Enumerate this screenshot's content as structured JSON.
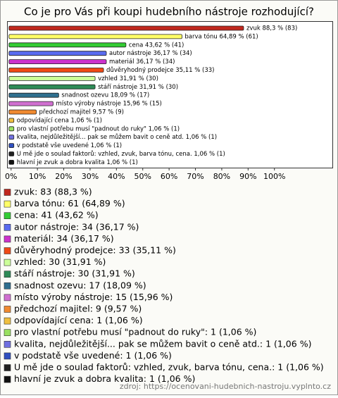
{
  "chart_data": {
    "type": "bar",
    "orientation": "horizontal",
    "title": "Co je pro Vás při koupi hudebního nástroje rozhodující?",
    "categories": [
      "zvuk",
      "barva tónu",
      "cena",
      "autor nástroje",
      "materiál",
      "důvěryhodný prodejce",
      "vzhled",
      "stáří nástroje",
      "snadnost ozevu",
      "místo výroby nástroje",
      "předchozí majitel",
      "odpovídající cena",
      "pro vlastní potřebu musí \"padnout do ruky\"",
      "kvalita, nejdůležitější... pak se můžem bavit o ceně atd.",
      "v podstatě vše uvedené",
      "U mě jde o soulad faktorů: vzhled, zvuk, barva tónu, cena.",
      "hlavní je zvuk a dobra kvalita"
    ],
    "values": [
      88.3,
      64.89,
      43.62,
      36.17,
      36.17,
      35.11,
      31.91,
      31.91,
      18.09,
      15.96,
      9.57,
      1.06,
      1.06,
      1.06,
      1.06,
      1.06,
      1.06
    ],
    "value_labels": [
      "zvuk 88,3 % (83)",
      "barva tónu 64,89 % (61)",
      "cena 43,62 % (41)",
      "autor nástroje 36,17 % (34)",
      "materiál 36,17 % (34)",
      "důvěryhodný prodejce 35,11 % (33)",
      "vzhled 31,91 % (30)",
      "stáří nástroje 31,91 % (30)",
      "snadnost ozevu 18,09 % (17)",
      "místo výroby nástroje 15,96 % (15)",
      "předchozí majitel 9,57 % (9)",
      "odpovídající cena 1,06 % (1)",
      "pro vlastní potřebu musí \"padnout do ruky\" 1,06 % (1)",
      "kvalita, nejdůležitější... pak se můžem bavit o ceně atd. 1,06 % (1)",
      "v podstatě vše uvedené 1,06 % (1)",
      "U mě jde o soulad faktorů: vzhled, zvuk, barva tónu, cena. 1,06 % (1)",
      "hlavní je zvuk a dobra kvalita 1,06 % (1)"
    ],
    "legend_labels": [
      "zvuk: 83 (88,3 %)",
      "barva tónu: 61 (64,89 %)",
      "cena: 41 (43,62 %)",
      "autor nástroje: 34 (36,17 %)",
      "materiál: 34 (36,17 %)",
      "důvěryhodný prodejce: 33 (35,11 %)",
      "vzhled: 30 (31,91 %)",
      "stáří nástroje: 30 (31,91 %)",
      "snadnost ozevu: 17 (18,09 %)",
      "místo výroby nástroje: 15 (15,96 %)",
      "předchozí majitel: 9 (9,57 %)",
      "odpovídající cena: 1 (1,06 %)",
      "pro vlastní potřebu musí \"padnout do ruky\": 1 (1,06 %)",
      "kvalita, nejdůležitější... pak se můžem bavit o ceně atd.: 1 (1,06 %)",
      "v podstatě vše uvedené: 1 (1,06 %)",
      "U mě jde o soulad faktorů: vzhled, zvuk, barva tónu, cena.: 1 (1,06 %)",
      "hlavní je zvuk a dobra kvalita: 1 (1,06 %)"
    ],
    "colors": [
      "#c0281e",
      "#ffff66",
      "#33cc33",
      "#5a6cf0",
      "#cc33cc",
      "#f04a16",
      "#ccff99",
      "#2e8b57",
      "#2f6f8f",
      "#d070d0",
      "#f08a30",
      "#f0c040",
      "#99e060",
      "#7070e0",
      "#3050c0",
      "#202020",
      "#101010"
    ],
    "xlim": [
      -1,
      122
    ],
    "xticks": [
      {
        "value": 0,
        "label": "0%"
      },
      {
        "value": 10,
        "label": "10%"
      },
      {
        "value": 20,
        "label": "20%"
      },
      {
        "value": 30,
        "label": "30%"
      },
      {
        "value": 40,
        "label": "40%"
      },
      {
        "value": 50,
        "label": "50%"
      },
      {
        "value": 60,
        "label": "60%"
      },
      {
        "value": 70,
        "label": "70%"
      },
      {
        "value": 80,
        "label": "80%"
      },
      {
        "value": 90,
        "label": "90%"
      },
      {
        "value": 100,
        "label": "100%"
      }
    ],
    "source": "zdroj: https://ocenovani-hudebnich-nastroju.vyplnto.cz"
  }
}
